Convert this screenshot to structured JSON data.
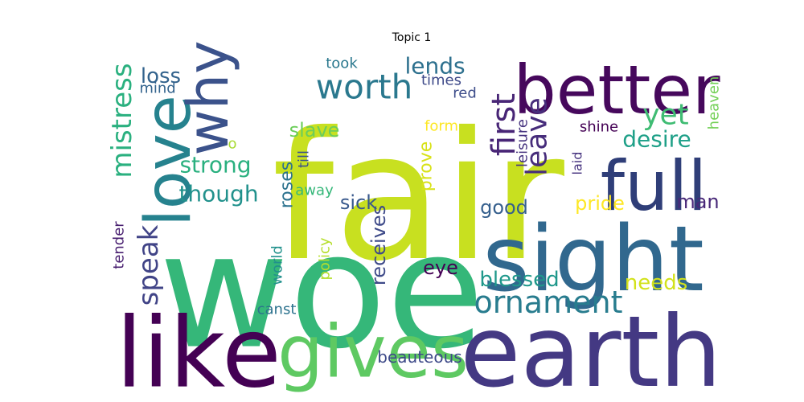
{
  "chart_data": {
    "type": "wordcloud",
    "title": "Topic 1",
    "colormap": "viridis",
    "background": "#ffffff",
    "words": [
      {
        "text": "fair",
        "weight": 100,
        "color": "#c8e020",
        "vertical": false
      },
      {
        "text": "woe",
        "weight": 96,
        "color": "#35b779",
        "vertical": false
      },
      {
        "text": "earth",
        "weight": 63,
        "color": "#443983",
        "vertical": false
      },
      {
        "text": "like",
        "weight": 62,
        "color": "#440154",
        "vertical": false
      },
      {
        "text": "sight",
        "weight": 60,
        "color": "#31688e",
        "vertical": false
      },
      {
        "text": "gives",
        "weight": 48,
        "color": "#5ec962",
        "vertical": false
      },
      {
        "text": "full",
        "weight": 45,
        "color": "#2f3e78",
        "vertical": false
      },
      {
        "text": "better",
        "weight": 45,
        "color": "#46085c",
        "vertical": false
      },
      {
        "text": "love",
        "weight": 42,
        "color": "#26828e",
        "vertical": true
      },
      {
        "text": "why",
        "weight": 37,
        "color": "#3b528b",
        "vertical": true
      },
      {
        "text": "worth",
        "weight": 25,
        "color": "#2a788e",
        "vertical": false
      },
      {
        "text": "first",
        "weight": 25,
        "color": "#482576",
        "vertical": true
      },
      {
        "text": "leave",
        "weight": 24,
        "color": "#472d7b",
        "vertical": true
      },
      {
        "text": "ornament",
        "weight": 22,
        "color": "#287c8e",
        "vertical": false
      },
      {
        "text": "speak",
        "weight": 22,
        "color": "#414487",
        "vertical": true
      },
      {
        "text": "mistress",
        "weight": 21,
        "color": "#2ab07f",
        "vertical": true
      },
      {
        "text": "yet",
        "weight": 21,
        "color": "#3fbc73",
        "vertical": false
      },
      {
        "text": "though",
        "weight": 18,
        "color": "#21918c",
        "vertical": false
      },
      {
        "text": "strong",
        "weight": 18,
        "color": "#2ab07f",
        "vertical": false
      },
      {
        "text": "lends",
        "weight": 16,
        "color": "#2d708e",
        "vertical": false
      },
      {
        "text": "desire",
        "weight": 16,
        "color": "#1fa088",
        "vertical": false
      },
      {
        "text": "blessed",
        "weight": 16,
        "color": "#1f988b",
        "vertical": false
      },
      {
        "text": "loss",
        "weight": 15,
        "color": "#33638d",
        "vertical": false
      },
      {
        "text": "receives",
        "weight": 15,
        "color": "#3e4a89",
        "vertical": true
      },
      {
        "text": "needs",
        "weight": 15,
        "color": "#d2e21b",
        "vertical": false
      },
      {
        "text": "sick",
        "weight": 14,
        "color": "#38588c",
        "vertical": false
      },
      {
        "text": "eye",
        "weight": 14,
        "color": "#440154",
        "vertical": false
      },
      {
        "text": "slave",
        "weight": 14,
        "color": "#6ccd5a",
        "vertical": false
      },
      {
        "text": "pride",
        "weight": 14,
        "color": "#fde725",
        "vertical": false
      },
      {
        "text": "good",
        "weight": 14,
        "color": "#355f8d",
        "vertical": false
      },
      {
        "text": "man",
        "weight": 14,
        "color": "#482878",
        "vertical": false
      },
      {
        "text": "roses",
        "weight": 13,
        "color": "#2c728e",
        "vertical": true
      },
      {
        "text": "prove",
        "weight": 13,
        "color": "#d8e219",
        "vertical": true
      },
      {
        "text": "beauteous",
        "weight": 12,
        "color": "#3e4a89",
        "vertical": false
      },
      {
        "text": "red",
        "weight": 11,
        "color": "#3d4d8a",
        "vertical": false
      },
      {
        "text": "heaven",
        "weight": 11,
        "color": "#73d056",
        "vertical": true
      },
      {
        "text": "mind",
        "weight": 11,
        "color": "#33638d",
        "vertical": false
      },
      {
        "text": "took",
        "weight": 11,
        "color": "#2a788e",
        "vertical": false
      },
      {
        "text": "times",
        "weight": 11,
        "color": "#3e4a89",
        "vertical": false
      },
      {
        "text": "tender",
        "weight": 11,
        "color": "#481f70",
        "vertical": true
      },
      {
        "text": "world",
        "weight": 11,
        "color": "#21918c",
        "vertical": true
      },
      {
        "text": "canst",
        "weight": 11,
        "color": "#2c728e",
        "vertical": false
      },
      {
        "text": "policy",
        "weight": 11,
        "color": "#b5de2b",
        "vertical": true
      },
      {
        "text": "away",
        "weight": 11,
        "color": "#35b779",
        "vertical": false
      },
      {
        "text": "till",
        "weight": 11,
        "color": "#3b528b",
        "vertical": true
      },
      {
        "text": "form",
        "weight": 11,
        "color": "#fde725",
        "vertical": false
      },
      {
        "text": "shine",
        "weight": 11,
        "color": "#440154",
        "vertical": false
      },
      {
        "text": "leisure",
        "weight": 11,
        "color": "#46337f",
        "vertical": true
      },
      {
        "text": "laid",
        "weight": 11,
        "color": "#46337f",
        "vertical": true
      },
      {
        "text": "o",
        "weight": 11,
        "color": "#a8db34",
        "vertical": false
      }
    ]
  }
}
